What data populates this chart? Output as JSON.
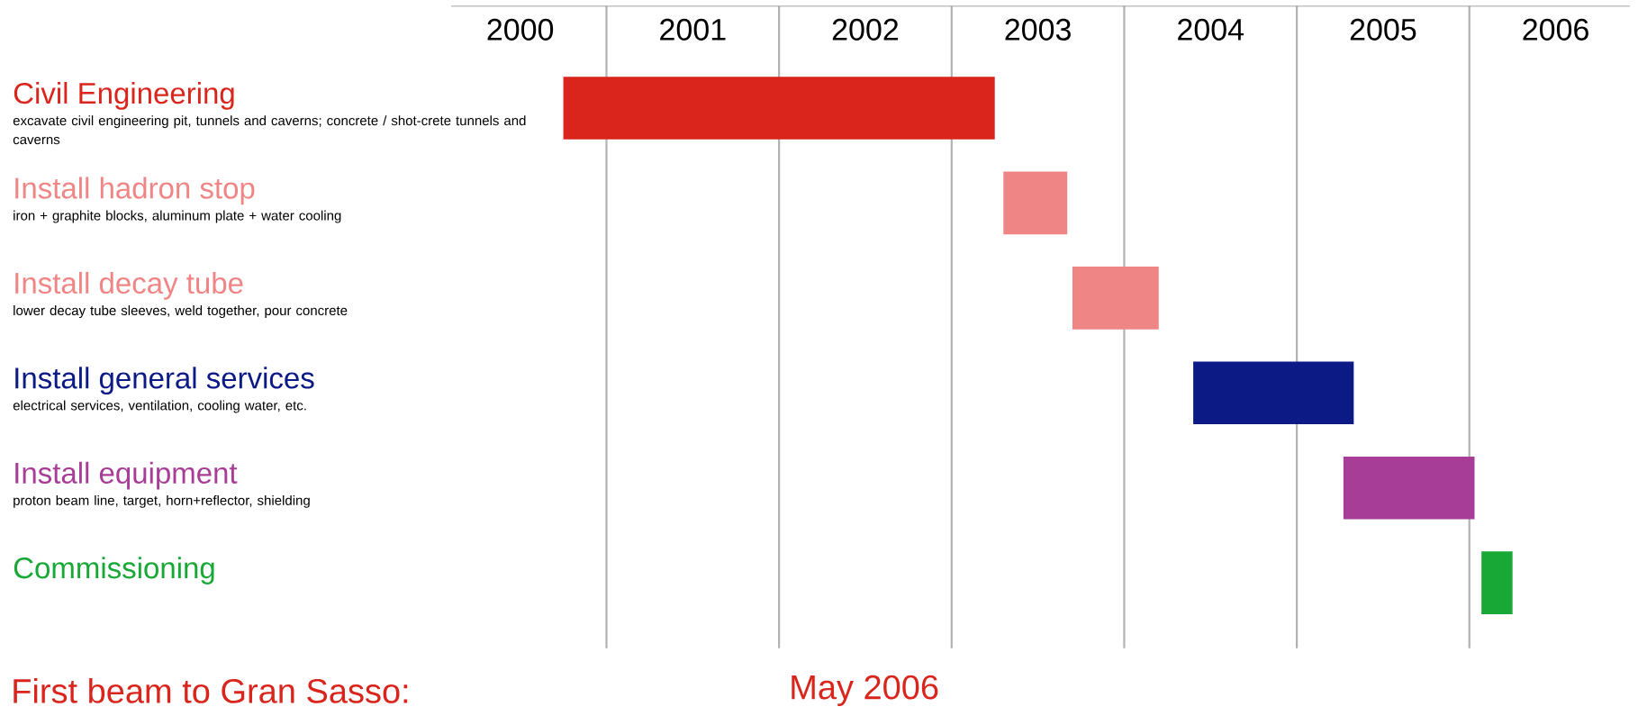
{
  "chart_data": {
    "type": "bar",
    "orientation": "horizontal",
    "categories": [
      "Civil Engineering",
      "Install hadron stop",
      "Install decay tube",
      "Install general services",
      "Install equipment",
      "Commissioning"
    ],
    "base": [
      2000.75,
      2003.3,
      2003.7,
      2004.4,
      2005.27,
      2006.07
    ],
    "values": [
      2.5,
      0.37,
      0.5,
      0.93,
      0.76,
      0.18
    ],
    "colors": [
      "#da251d",
      "#f08585",
      "#f08585",
      "#0b1a85",
      "#a83d97",
      "#17a836"
    ],
    "xlim": [
      2000.1,
      2006.93
    ],
    "xticks": [
      {
        "value": 2000.5,
        "label": "2000"
      },
      {
        "value": 2001.5,
        "label": "2001"
      },
      {
        "value": 2002.5,
        "label": "2002"
      },
      {
        "value": 2003.5,
        "label": "2003"
      },
      {
        "value": 2004.5,
        "label": "2004"
      },
      {
        "value": 2005.5,
        "label": "2005"
      },
      {
        "value": 2006.5,
        "label": "2006"
      },
      {
        "value": 2001,
        "label": null
      },
      {
        "value": 2002,
        "label": null
      },
      {
        "value": 2003,
        "label": null
      },
      {
        "value": 2004,
        "label": null
      },
      {
        "value": 2005,
        "label": null
      },
      {
        "value": 2006,
        "label": null
      }
    ],
    "grid": "x",
    "annotations": [
      "excavate civil engineering pit, tunnels and caverns; concrete / shot-crete tunnels and caverns",
      "iron + graphite blocks, aluminum plate + water cooling",
      "lower decay tube sleeves, weld together, pour concrete",
      "electrical services, ventilation, cooling water, etc.",
      "proton beam line, target, horn+reflector, shielding",
      "First beam to Gran Sasso:",
      "May 2006"
    ]
  }
}
